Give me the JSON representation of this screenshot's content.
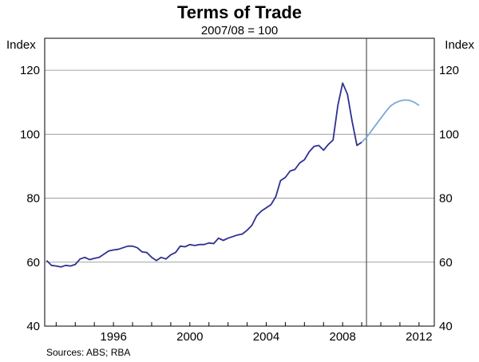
{
  "chart_data": {
    "type": "line",
    "title": "Terms of Trade",
    "subtitle": "2007/08 = 100",
    "ylabel_left": "Index",
    "ylabel_right": "Index",
    "source": "Sources: ABS; RBA",
    "ylim": [
      40,
      130
    ],
    "yticks": [
      40,
      60,
      80,
      100,
      120
    ],
    "xlim": [
      1992.4,
      2012.8
    ],
    "xticks": [
      {
        "label": "1996",
        "value": 1996.0
      },
      {
        "label": "2000",
        "value": 2000.0
      },
      {
        "label": "2004",
        "value": 2004.0
      },
      {
        "label": "2008",
        "value": 2008.0
      },
      {
        "label": "2012",
        "value": 2012.0
      }
    ],
    "grid": true,
    "forecast_divider_x": 2009.25,
    "series": [
      {
        "kind": "actual",
        "color": "#2e3192",
        "points": [
          [
            1992.5,
            60.5
          ],
          [
            1992.75,
            59.0
          ],
          [
            1993.0,
            58.8
          ],
          [
            1993.25,
            58.5
          ],
          [
            1993.5,
            59.0
          ],
          [
            1993.75,
            58.8
          ],
          [
            1994.0,
            59.3
          ],
          [
            1994.25,
            61.0
          ],
          [
            1994.5,
            61.5
          ],
          [
            1994.75,
            60.8
          ],
          [
            1995.0,
            61.2
          ],
          [
            1995.25,
            61.5
          ],
          [
            1995.5,
            62.5
          ],
          [
            1995.75,
            63.5
          ],
          [
            1996.0,
            63.8
          ],
          [
            1996.25,
            64.0
          ],
          [
            1996.5,
            64.5
          ],
          [
            1996.75,
            65.0
          ],
          [
            1997.0,
            65.0
          ],
          [
            1997.25,
            64.5
          ],
          [
            1997.5,
            63.2
          ],
          [
            1997.75,
            63.0
          ],
          [
            1998.0,
            61.5
          ],
          [
            1998.25,
            60.5
          ],
          [
            1998.5,
            61.5
          ],
          [
            1998.75,
            61.0
          ],
          [
            1999.0,
            62.3
          ],
          [
            1999.25,
            63.0
          ],
          [
            1999.5,
            65.0
          ],
          [
            1999.75,
            64.8
          ],
          [
            2000.0,
            65.5
          ],
          [
            2000.25,
            65.2
          ],
          [
            2000.5,
            65.5
          ],
          [
            2000.75,
            65.5
          ],
          [
            2001.0,
            66.0
          ],
          [
            2001.25,
            65.8
          ],
          [
            2001.5,
            67.5
          ],
          [
            2001.75,
            66.8
          ],
          [
            2002.0,
            67.5
          ],
          [
            2002.25,
            68.0
          ],
          [
            2002.5,
            68.5
          ],
          [
            2002.75,
            68.8
          ],
          [
            2003.0,
            70.0
          ],
          [
            2003.25,
            71.5
          ],
          [
            2003.5,
            74.5
          ],
          [
            2003.75,
            76.0
          ],
          [
            2004.0,
            77.0
          ],
          [
            2004.25,
            78.0
          ],
          [
            2004.5,
            80.5
          ],
          [
            2004.75,
            85.5
          ],
          [
            2005.0,
            86.5
          ],
          [
            2005.25,
            88.5
          ],
          [
            2005.5,
            89.0
          ],
          [
            2005.75,
            91.0
          ],
          [
            2006.0,
            92.0
          ],
          [
            2006.25,
            94.5
          ],
          [
            2006.5,
            96.2
          ],
          [
            2006.75,
            96.5
          ],
          [
            2007.0,
            95.0
          ],
          [
            2007.25,
            96.8
          ],
          [
            2007.5,
            98.2
          ],
          [
            2007.75,
            109.0
          ],
          [
            2008.0,
            116.0
          ],
          [
            2008.25,
            112.5
          ],
          [
            2008.5,
            104.0
          ],
          [
            2008.75,
            96.5
          ],
          [
            2009.0,
            97.5
          ]
        ]
      },
      {
        "kind": "forecast",
        "color": "#7aaad8",
        "points": [
          [
            2009.0,
            97.5
          ],
          [
            2009.25,
            99.0
          ],
          [
            2009.5,
            101.0
          ],
          [
            2009.75,
            103.0
          ],
          [
            2010.0,
            105.0
          ],
          [
            2010.25,
            107.0
          ],
          [
            2010.5,
            108.8
          ],
          [
            2010.75,
            109.8
          ],
          [
            2011.0,
            110.4
          ],
          [
            2011.25,
            110.7
          ],
          [
            2011.5,
            110.6
          ],
          [
            2011.75,
            110.0
          ],
          [
            2012.0,
            109.0
          ]
        ]
      }
    ]
  }
}
